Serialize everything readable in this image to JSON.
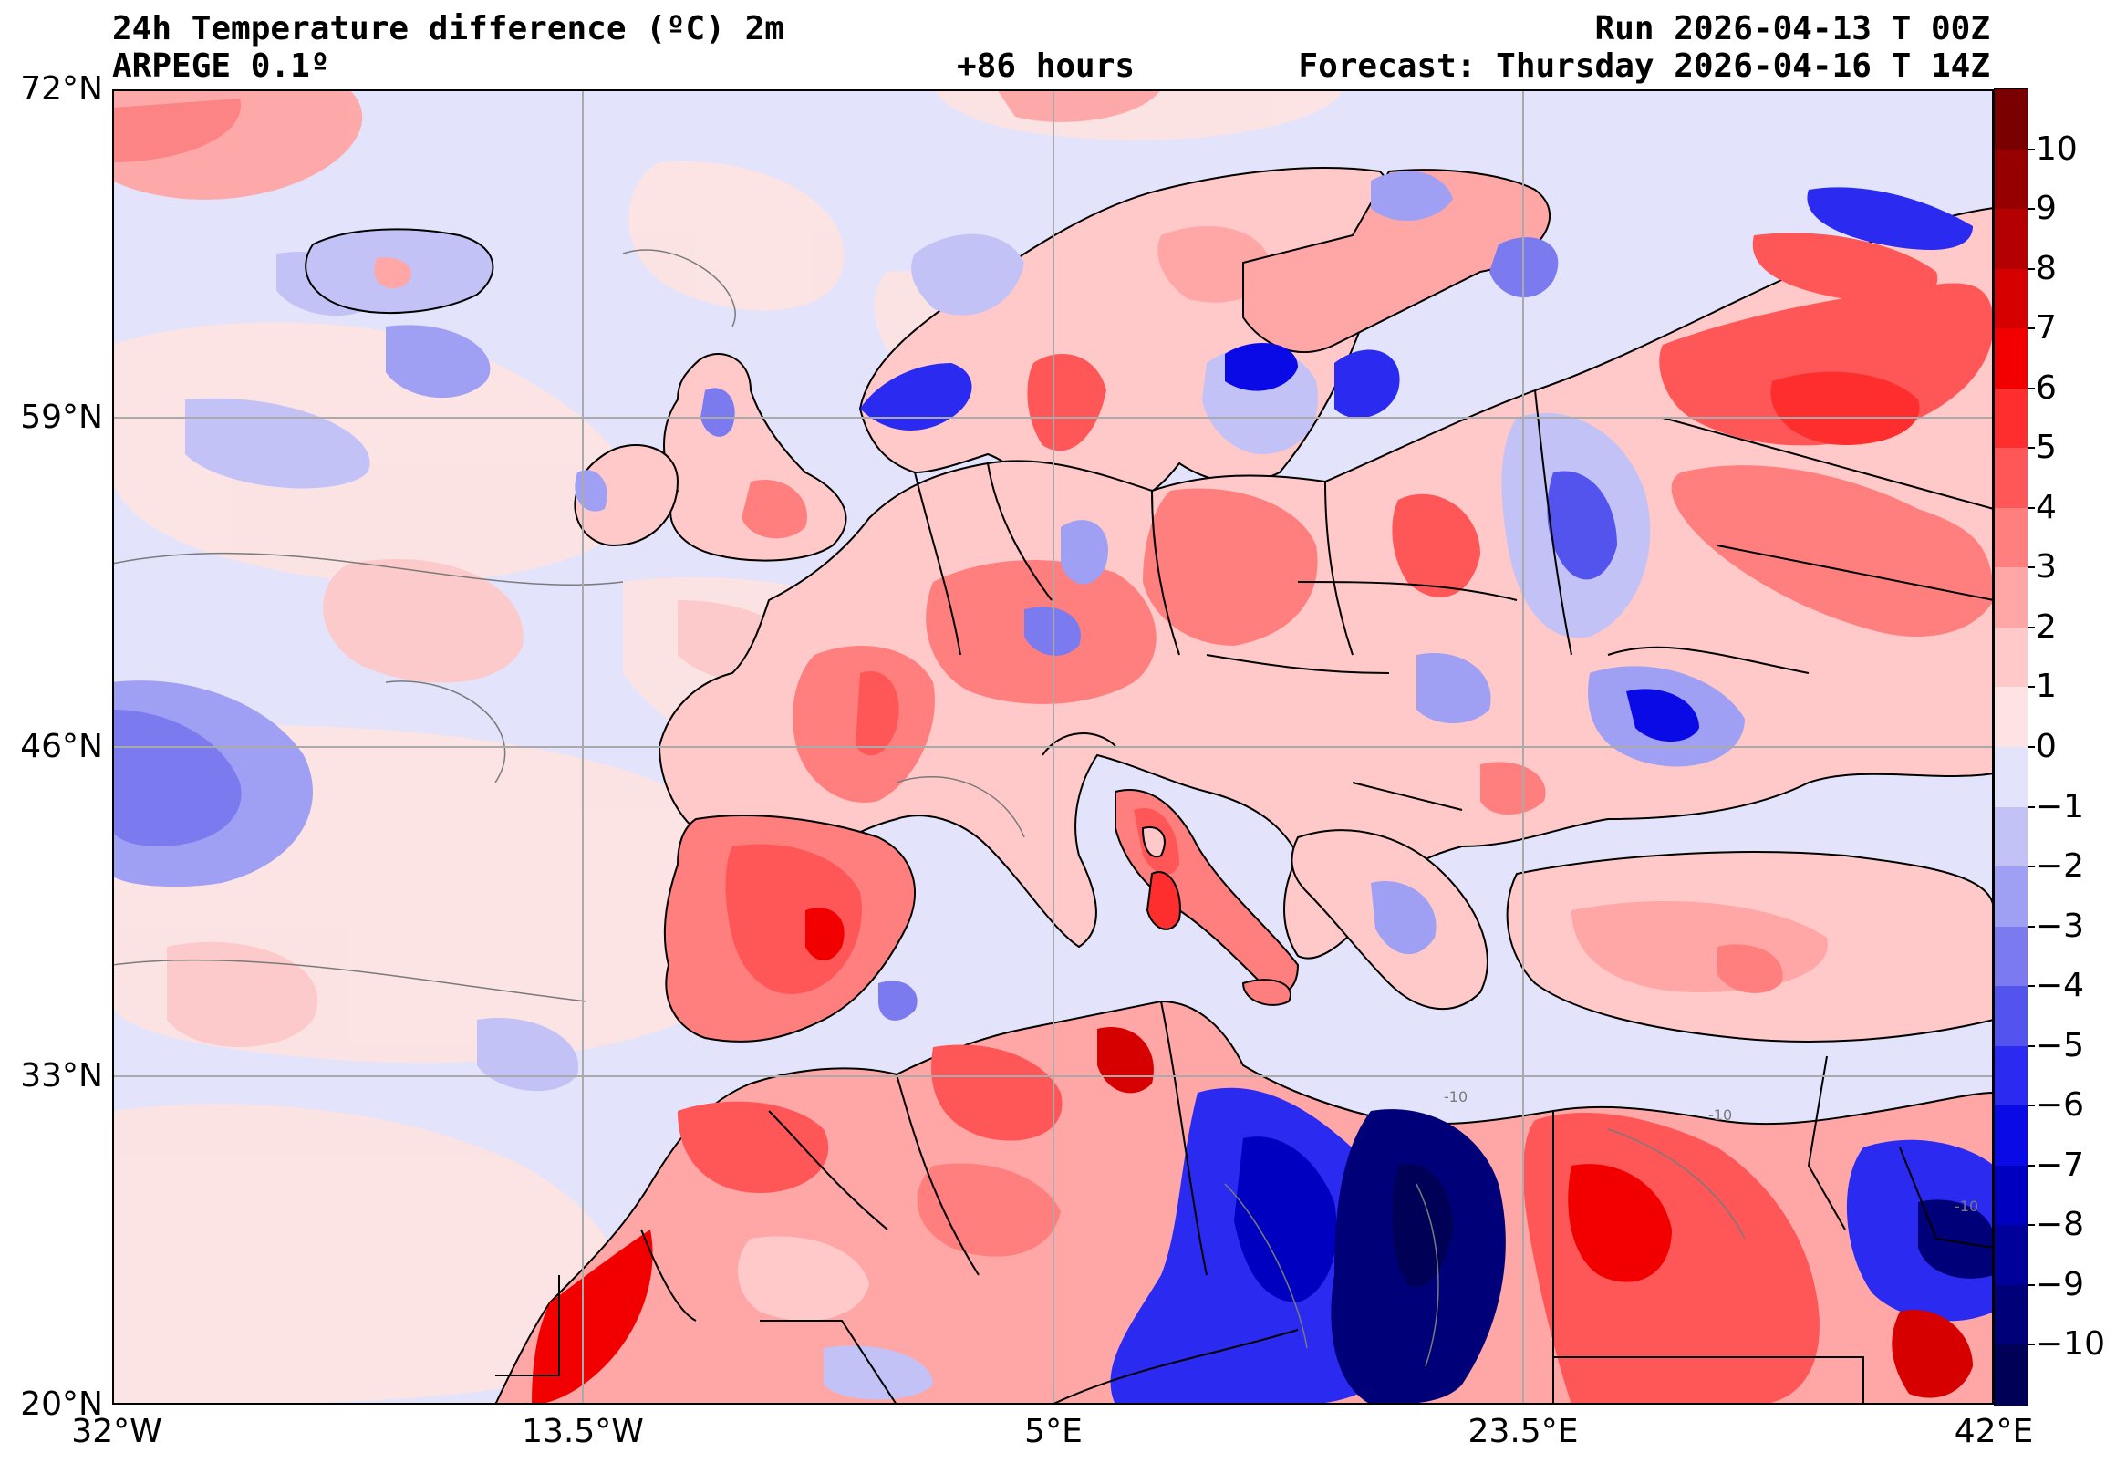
{
  "header": {
    "title": "24h Temperature difference (ºC) 2m",
    "model": "ARPEGE 0.1º",
    "run": "Run 2026-04-13 T 00Z",
    "lead_time": "+86 hours",
    "forecast": "Forecast: Thursday 2026-04-16 T 14Z"
  },
  "axes": {
    "lat_labels": [
      "72°N",
      "59°N",
      "46°N",
      "33°N",
      "20°N"
    ],
    "lon_labels": [
      "32°W",
      "13.5°W",
      "5°E",
      "23.5°E",
      "42°E"
    ]
  },
  "map": {
    "projection": "equirectangular",
    "lon_range": [
      -32,
      42
    ],
    "lat_range": [
      20,
      72
    ],
    "ocean_default": "#e3e3fb",
    "land_default": "#fde3e3",
    "border_color": "#000000",
    "contour_color": "#7a7a7a",
    "contour_label": "-10"
  },
  "colorbar": {
    "labels": [
      "10",
      "9",
      "8",
      "7",
      "6",
      "5",
      "4",
      "3",
      "2",
      "1",
      "0",
      "−1",
      "−2",
      "−3",
      "−4",
      "−5",
      "−6",
      "−7",
      "−8",
      "−9",
      "−10"
    ],
    "colors_top_to_bottom": [
      "#7a0000",
      "#960000",
      "#b40000",
      "#d60000",
      "#f20000",
      "#ff2e2e",
      "#ff5757",
      "#ff7f7f",
      "#ffa6a6",
      "#ffc9c9",
      "#fde3e3",
      "#e3e3fb",
      "#c2c2f7",
      "#9f9ff3",
      "#7b7bef",
      "#5353ee",
      "#2a2af0",
      "#0a0ae6",
      "#0000c0",
      "#00009a",
      "#000078",
      "#000056"
    ]
  }
}
